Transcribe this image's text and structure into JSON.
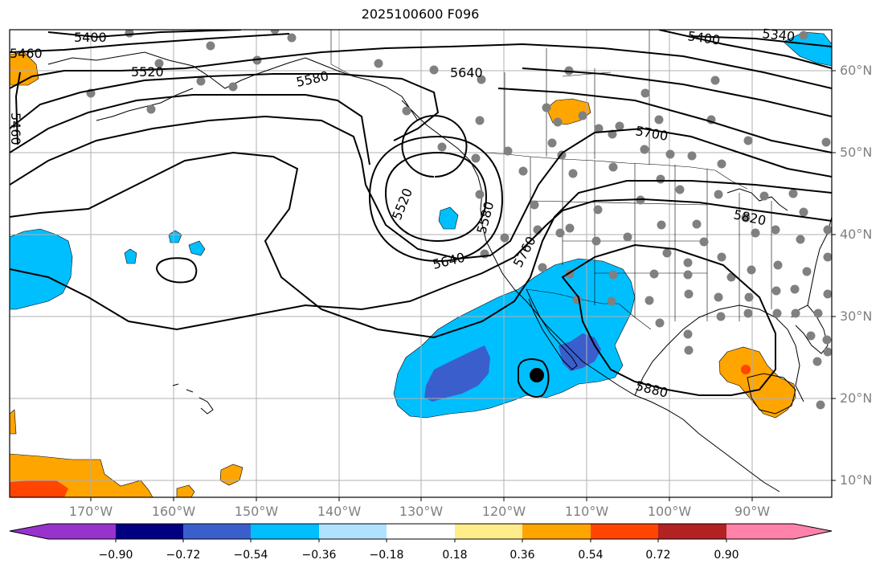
{
  "title": "2025100600 F096",
  "lat_labels": [
    "60°N",
    "50°N",
    "40°N",
    "30°N",
    "20°N",
    "10°N"
  ],
  "lon_labels": [
    "170°W",
    "160°W",
    "150°W",
    "140°W",
    "130°W",
    "120°W",
    "110°W",
    "100°W",
    "90°W"
  ],
  "contour_labels": [
    "5400",
    "5460",
    "5520",
    "5580",
    "5640",
    "5700",
    "5760",
    "5820",
    "5880",
    "5520",
    "5580",
    "5640",
    "5400",
    "5340",
    "5460"
  ],
  "colorbar": {
    "ticks": [
      "−0.90",
      "−0.72",
      "−0.54",
      "−0.36",
      "−0.18",
      "0.18",
      "0.36",
      "0.54",
      "0.72",
      "0.90"
    ],
    "colors": [
      "#9932CC",
      "#000080",
      "#3A5FCD",
      "#00BFFF",
      "#B0E2FF",
      "#FFFFFF",
      "#FFEC8B",
      "#FFA500",
      "#FF4500",
      "#B22222",
      "#FF82AB"
    ]
  }
}
